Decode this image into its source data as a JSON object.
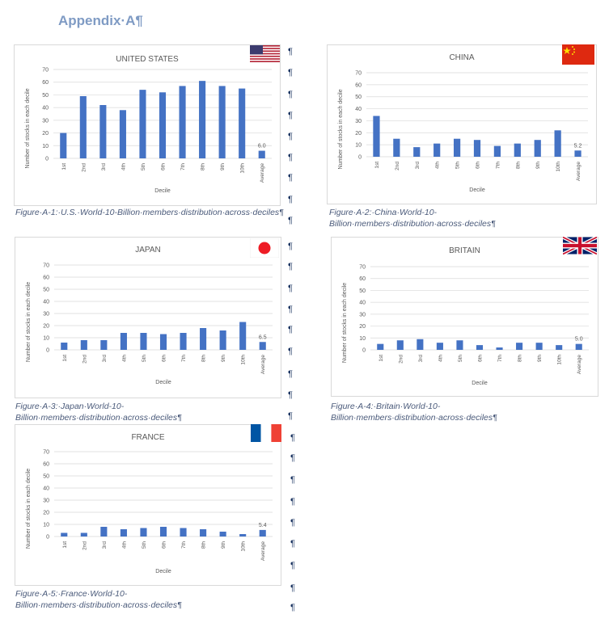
{
  "document": {
    "heading": "Appendix·A¶",
    "pilcrow": "¶"
  },
  "figures": [
    {
      "country": "UNITED STATES",
      "caption": "Figure·A-1:·U.S.·World-10-Billion·members·distribution·across·deciles¶",
      "flag": "us-flag"
    },
    {
      "country": "CHINA",
      "caption": "Figure·A-2:·China·World-10-Billion·members·distribution·across·deciles¶",
      "flag": "china-flag"
    },
    {
      "country": "JAPAN",
      "caption": "Figure·A-3:·Japan·World-10-Billion·members·distribution·across·deciles¶",
      "flag": "japan-flag"
    },
    {
      "country": "BRITAIN",
      "caption": "Figure·A-4:·Britain·World-10-Billion·members·distribution·across·deciles¶",
      "flag": "uk-flag"
    },
    {
      "country": "FRANCE",
      "caption": "Figure·A-5:·France·World-10-Billion·members·distribution·across·deciles¶",
      "flag": "france-flag"
    }
  ],
  "colors": {
    "bar": "#4472c4",
    "grid": "#d9d9d9",
    "text": "#595959"
  },
  "chart_data": [
    {
      "type": "bar",
      "title": "UNITED STATES",
      "categories": [
        "1st",
        "2nd",
        "3rd",
        "4th",
        "5th",
        "6th",
        "7th",
        "8th",
        "9th",
        "10th",
        "Average"
      ],
      "values": [
        20,
        49,
        42,
        38,
        54,
        52,
        57,
        61,
        57,
        55,
        6.0
      ],
      "data_label": "6.0",
      "xlabel": "Decile",
      "ylabel": "Number of stocks in each decile",
      "ylim": [
        0,
        70
      ],
      "yticks": [
        0,
        10,
        20,
        30,
        40,
        50,
        60,
        70
      ],
      "grid": true
    },
    {
      "type": "bar",
      "title": "CHINA",
      "categories": [
        "1st",
        "2nd",
        "3rd",
        "4th",
        "5th",
        "6th",
        "7th",
        "8th",
        "9th",
        "10th",
        "Average"
      ],
      "values": [
        34,
        15,
        8,
        11,
        15,
        14,
        9,
        11,
        14,
        22,
        5.2
      ],
      "data_label": "5.2",
      "xlabel": "Decile",
      "ylabel": "Number of stocks in each decile",
      "ylim": [
        0,
        70
      ],
      "yticks": [
        0,
        10,
        20,
        30,
        40,
        50,
        60,
        70
      ],
      "grid": true
    },
    {
      "type": "bar",
      "title": "JAPAN",
      "categories": [
        "1st",
        "2nd",
        "3rd",
        "4th",
        "5th",
        "6th",
        "7th",
        "8th",
        "9th",
        "10th",
        "Average"
      ],
      "values": [
        6,
        8,
        8,
        14,
        14,
        13,
        14,
        18,
        16,
        23,
        6.5
      ],
      "data_label": "6.5",
      "xlabel": "Decile",
      "ylabel": "Number of stocks in each decile",
      "ylim": [
        0,
        70
      ],
      "yticks": [
        0,
        10,
        20,
        30,
        40,
        50,
        60,
        70
      ],
      "grid": true
    },
    {
      "type": "bar",
      "title": "BRITAIN",
      "categories": [
        "1st",
        "2nd",
        "3rd",
        "4th",
        "5th",
        "6th",
        "7th",
        "8th",
        "9th",
        "10th",
        "Average"
      ],
      "values": [
        5,
        8,
        9,
        6,
        8,
        4,
        2,
        6,
        6,
        4,
        5.0
      ],
      "data_label": "5.0",
      "xlabel": "Decile",
      "ylabel": "Number of stocks in each decile",
      "ylim": [
        0,
        70
      ],
      "yticks": [
        0,
        10,
        20,
        30,
        40,
        50,
        60,
        70
      ],
      "grid": true
    },
    {
      "type": "bar",
      "title": "FRANCE",
      "categories": [
        "1st",
        "2nd",
        "3rd",
        "4th",
        "5th",
        "6th",
        "7th",
        "8th",
        "9th",
        "10th",
        "Average"
      ],
      "values": [
        3,
        3,
        8,
        6,
        7,
        8,
        7,
        6,
        4,
        2,
        5.4
      ],
      "data_label": "5.4",
      "xlabel": "Decile",
      "ylabel": "Number of stocks in each decile",
      "ylim": [
        0,
        70
      ],
      "yticks": [
        0,
        10,
        20,
        30,
        40,
        50,
        60,
        70
      ],
      "grid": true
    }
  ]
}
